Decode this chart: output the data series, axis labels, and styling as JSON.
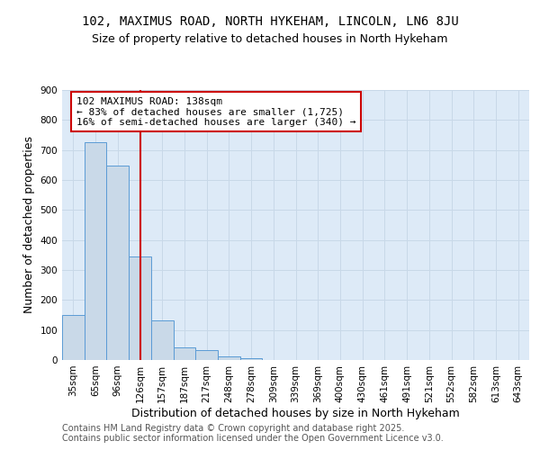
{
  "title1": "102, MAXIMUS ROAD, NORTH HYKEHAM, LINCOLN, LN6 8JU",
  "title2": "Size of property relative to detached houses in North Hykeham",
  "xlabel": "Distribution of detached houses by size in North Hykeham",
  "ylabel": "Number of detached properties",
  "categories": [
    "35sqm",
    "65sqm",
    "96sqm",
    "126sqm",
    "157sqm",
    "187sqm",
    "217sqm",
    "248sqm",
    "278sqm",
    "309sqm",
    "339sqm",
    "369sqm",
    "400sqm",
    "430sqm",
    "461sqm",
    "491sqm",
    "521sqm",
    "552sqm",
    "582sqm",
    "613sqm",
    "643sqm"
  ],
  "values": [
    150,
    725,
    648,
    345,
    133,
    42,
    32,
    12,
    7,
    0,
    0,
    0,
    0,
    0,
    0,
    0,
    0,
    0,
    0,
    0,
    0
  ],
  "bar_color": "#c9d9e8",
  "bar_edge_color": "#5b9bd5",
  "vline_x": 3.0,
  "vline_color": "#cc0000",
  "annotation_text": "102 MAXIMUS ROAD: 138sqm\n← 83% of detached houses are smaller (1,725)\n16% of semi-detached houses are larger (340) →",
  "annotation_box_color": "#ffffff",
  "annotation_box_edge": "#cc0000",
  "ylim": [
    0,
    900
  ],
  "yticks": [
    0,
    100,
    200,
    300,
    400,
    500,
    600,
    700,
    800,
    900
  ],
  "grid_color": "#c8d8e8",
  "background_color": "#ddeaf7",
  "footer": "Contains HM Land Registry data © Crown copyright and database right 2025.\nContains public sector information licensed under the Open Government Licence v3.0.",
  "title_fontsize": 10,
  "subtitle_fontsize": 9,
  "axis_label_fontsize": 9,
  "tick_fontsize": 7.5,
  "footer_fontsize": 7,
  "annot_fontsize": 8
}
